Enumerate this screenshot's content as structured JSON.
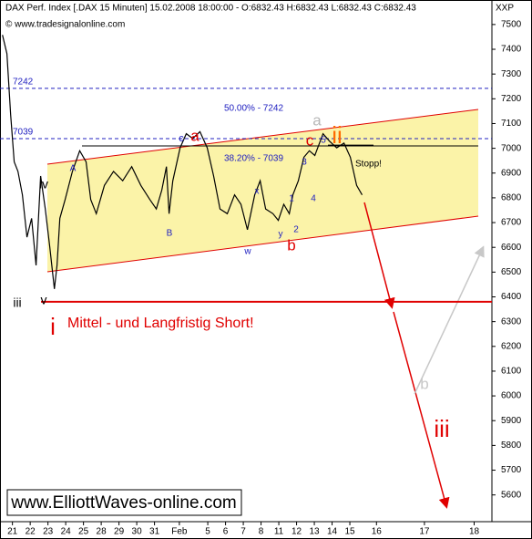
{
  "chart_data": {
    "type": "line",
    "title": "DAX Perf. Index [.DAX  15 Minuten] 15.02.2008 18:00:00 - O:6832.43 H:6832.43 L:6832.43 C:6832.43",
    "subtitle": "© www.tradesignalonline.com",
    "corner_label": "XXP",
    "watermark": "www.ElliottWaves-online.com",
    "headline": "Mittel - und Langfristig Short!",
    "stop_label": "Stopp!",
    "xlim": [
      -0.7,
      27.0
    ],
    "ylim": [
      5492,
      7599
    ],
    "xticks": [
      {
        "value": 0,
        "label": "21"
      },
      {
        "value": 1,
        "label": "22"
      },
      {
        "value": 2,
        "label": "23"
      },
      {
        "value": 3,
        "label": "24"
      },
      {
        "value": 4,
        "label": "25"
      },
      {
        "value": 5,
        "label": "28"
      },
      {
        "value": 6,
        "label": "29"
      },
      {
        "value": 7,
        "label": "30"
      },
      {
        "value": 8,
        "label": "31"
      },
      {
        "value": 9.4,
        "label": "Feb"
      },
      {
        "value": 11,
        "label": "5"
      },
      {
        "value": 12,
        "label": "6"
      },
      {
        "value": 13,
        "label": "7"
      },
      {
        "value": 14,
        "label": "8"
      },
      {
        "value": 15,
        "label": "11"
      },
      {
        "value": 16,
        "label": "12"
      },
      {
        "value": 17,
        "label": "13"
      },
      {
        "value": 18,
        "label": "14"
      },
      {
        "value": 19,
        "label": "15"
      },
      {
        "value": 20.5,
        "label": "16"
      },
      {
        "value": 23.2,
        "label": "17"
      },
      {
        "value": 26,
        "label": "18"
      }
    ],
    "yticks": [
      5600,
      5700,
      5800,
      5900,
      6000,
      6100,
      6200,
      6300,
      6400,
      6500,
      6600,
      6700,
      6800,
      6900,
      7000,
      7100,
      7200,
      7300,
      7400,
      7500
    ],
    "levels": [
      7242,
      7039
    ],
    "level_notes": [
      "50.00% - 7242",
      "38.20% - 7039"
    ],
    "short_level": 6380,
    "stop_level": 7013,
    "annotations": [
      "a",
      "ii",
      "c",
      "a",
      "c",
      "A",
      "B",
      "5",
      "3",
      "4",
      "1",
      "2",
      "x",
      "w",
      "y",
      "b",
      "iv",
      "v",
      "iii",
      "i",
      "iii",
      "b"
    ],
    "series": [
      {
        "name": "DAX",
        "color": "#000000",
        "x": [
          -0.56,
          -0.31,
          -0.1,
          0.1,
          0.31,
          0.56,
          0.82,
          1.08,
          1.33,
          1.59,
          1.85,
          2.1,
          2.36,
          2.51,
          2.67,
          2.97,
          3.38,
          3.79,
          4.15,
          4.41,
          4.72,
          5.18,
          5.69,
          6.21,
          6.72,
          7.23,
          7.74,
          8.1,
          8.41,
          8.67,
          8.82,
          9.03,
          9.44,
          9.79,
          10.15,
          10.56,
          10.97,
          11.33,
          11.69,
          12.1,
          12.51,
          12.87,
          13.23,
          13.64,
          13.95,
          14.26,
          14.67,
          14.97,
          15.28,
          15.59,
          15.79,
          16.1,
          16.41,
          16.72,
          17.03,
          17.49,
          17.85,
          18.26,
          18.67,
          19.03,
          19.38,
          19.69
        ],
        "values": [
          7458,
          7382,
          7135,
          6945,
          6907,
          6812,
          6641,
          6717,
          6527,
          6888,
          6755,
          6603,
          6432,
          6527,
          6717,
          6793,
          6907,
          6990,
          6945,
          6793,
          6736,
          6850,
          6907,
          6869,
          6926,
          6850,
          6793,
          6755,
          6831,
          6926,
          6736,
          6869,
          7002,
          7059,
          7040,
          7067,
          7002,
          6888,
          6755,
          6736,
          6812,
          6774,
          6671,
          6812,
          6869,
          6755,
          6736,
          6709,
          6774,
          6736,
          6812,
          6869,
          6964,
          6990,
          6971,
          7059,
          7029,
          7002,
          7021,
          6964,
          6850,
          6812
        ]
      }
    ]
  }
}
